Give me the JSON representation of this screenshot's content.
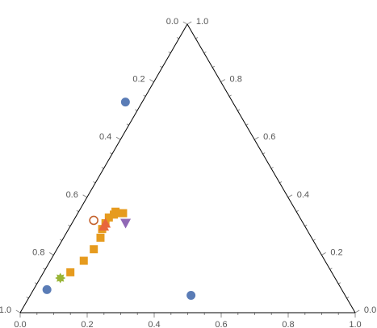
{
  "chart_data": {
    "type": "scatter",
    "subtype": "ternary",
    "title": "",
    "ticks": {
      "left_edge": [
        "0.0",
        "0.2",
        "0.4",
        "0.6",
        "0.8",
        "1.0"
      ],
      "right_edge": [
        "1.0",
        "0.8",
        "0.6",
        "0.4",
        "0.2",
        "0.0"
      ],
      "bottom_edge": [
        "0.0",
        "0.2",
        "0.4",
        "0.6",
        "0.8",
        "1.0"
      ]
    },
    "grid": false,
    "legend": "none",
    "series": [
      {
        "marker": "circle",
        "color": "#5a7cb6",
        "points": [
          {
            "a": 0.73,
            "b": 0.32
          },
          {
            "a": 0.08,
            "b": 0.88
          },
          {
            "a": 0.06,
            "b": 0.46
          }
        ]
      },
      {
        "marker": "square",
        "color": "#e69b1e",
        "points": [
          {
            "a": 0.14,
            "b": 0.78
          },
          {
            "a": 0.18,
            "b": 0.72
          },
          {
            "a": 0.22,
            "b": 0.67
          },
          {
            "a": 0.26,
            "b": 0.63
          },
          {
            "a": 0.29,
            "b": 0.61
          },
          {
            "a": 0.31,
            "b": 0.59
          },
          {
            "a": 0.33,
            "b": 0.57
          },
          {
            "a": 0.34,
            "b": 0.55
          },
          {
            "a": 0.35,
            "b": 0.54
          },
          {
            "a": 0.345,
            "b": 0.53
          },
          {
            "a": 0.345,
            "b": 0.52
          }
        ]
      },
      {
        "marker": "triangle-up",
        "color": "#e8663c",
        "points": [
          {
            "a": 0.3,
            "b": 0.6
          },
          {
            "a": 0.31,
            "b": 0.59
          }
        ]
      },
      {
        "marker": "triangle-down",
        "color": "#9068b5",
        "points": [
          {
            "a": 0.31,
            "b": 0.53
          }
        ]
      },
      {
        "marker": "open-circle",
        "color": "#c4622d",
        "points": [
          {
            "a": 0.32,
            "b": 0.62
          }
        ]
      },
      {
        "marker": "star",
        "color": "#99b536",
        "points": [
          {
            "a": 0.12,
            "b": 0.82
          }
        ]
      }
    ]
  }
}
